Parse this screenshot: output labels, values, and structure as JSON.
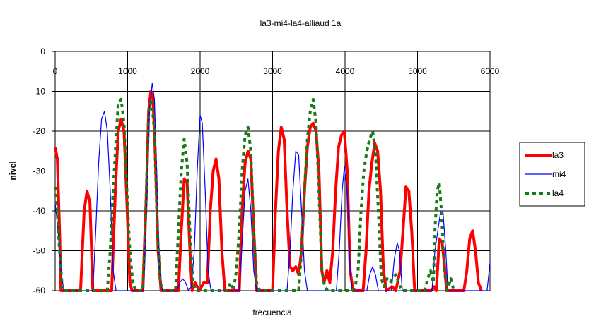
{
  "chart_data": {
    "type": "line",
    "title": "la3-mi4-la4-alliaud 1a",
    "xlabel": "frecuencia",
    "ylabel": "nivel",
    "xlim": [
      0,
      6000
    ],
    "ylim": [
      -60,
      0
    ],
    "xticks": [
      0,
      1000,
      2000,
      3000,
      4000,
      5000,
      6000
    ],
    "yticks": [
      0,
      -10,
      -20,
      -30,
      -40,
      -50,
      -60
    ],
    "grid": true,
    "legend_position": "right",
    "series": [
      {
        "name": "la3",
        "color": "#ff0000",
        "style": "solid-thick",
        "points": [
          [
            0,
            -24
          ],
          [
            30,
            -27
          ],
          [
            60,
            -45
          ],
          [
            80,
            -60
          ],
          [
            350,
            -60
          ],
          [
            400,
            -40
          ],
          [
            440,
            -35
          ],
          [
            480,
            -38
          ],
          [
            520,
            -60
          ],
          [
            780,
            -60
          ],
          [
            830,
            -35
          ],
          [
            870,
            -20
          ],
          [
            910,
            -17
          ],
          [
            950,
            -20
          ],
          [
            990,
            -38
          ],
          [
            1030,
            -58
          ],
          [
            1060,
            -60
          ],
          [
            1210,
            -60
          ],
          [
            1260,
            -35
          ],
          [
            1290,
            -15
          ],
          [
            1320,
            -10
          ],
          [
            1350,
            -12
          ],
          [
            1380,
            -25
          ],
          [
            1420,
            -50
          ],
          [
            1460,
            -60
          ],
          [
            1700,
            -60
          ],
          [
            1740,
            -45
          ],
          [
            1780,
            -32
          ],
          [
            1820,
            -33
          ],
          [
            1860,
            -50
          ],
          [
            1890,
            -60
          ],
          [
            1930,
            -58
          ],
          [
            1990,
            -60
          ],
          [
            2050,
            -58
          ],
          [
            2100,
            -58
          ],
          [
            2140,
            -40
          ],
          [
            2180,
            -30
          ],
          [
            2220,
            -27
          ],
          [
            2260,
            -32
          ],
          [
            2300,
            -50
          ],
          [
            2340,
            -60
          ],
          [
            2540,
            -60
          ],
          [
            2580,
            -40
          ],
          [
            2620,
            -28
          ],
          [
            2660,
            -25
          ],
          [
            2700,
            -27
          ],
          [
            2740,
            -45
          ],
          [
            2780,
            -60
          ],
          [
            3000,
            -60
          ],
          [
            3040,
            -40
          ],
          [
            3080,
            -25
          ],
          [
            3120,
            -19
          ],
          [
            3160,
            -22
          ],
          [
            3200,
            -40
          ],
          [
            3240,
            -54
          ],
          [
            3280,
            -55
          ],
          [
            3320,
            -54
          ],
          [
            3360,
            -56
          ],
          [
            3400,
            -50
          ],
          [
            3440,
            -35
          ],
          [
            3480,
            -24
          ],
          [
            3520,
            -19
          ],
          [
            3560,
            -18
          ],
          [
            3600,
            -20
          ],
          [
            3640,
            -30
          ],
          [
            3680,
            -55
          ],
          [
            3710,
            -58
          ],
          [
            3750,
            -55
          ],
          [
            3790,
            -58
          ],
          [
            3830,
            -50
          ],
          [
            3870,
            -35
          ],
          [
            3910,
            -24
          ],
          [
            3950,
            -21
          ],
          [
            3990,
            -20
          ],
          [
            4030,
            -30
          ],
          [
            4070,
            -55
          ],
          [
            4110,
            -60
          ],
          [
            4250,
            -60
          ],
          [
            4290,
            -50
          ],
          [
            4330,
            -35
          ],
          [
            4370,
            -28
          ],
          [
            4410,
            -23
          ],
          [
            4450,
            -25
          ],
          [
            4490,
            -35
          ],
          [
            4530,
            -55
          ],
          [
            4570,
            -60
          ],
          [
            4650,
            -59
          ],
          [
            4700,
            -60
          ],
          [
            4760,
            -55
          ],
          [
            4800,
            -45
          ],
          [
            4840,
            -34
          ],
          [
            4880,
            -35
          ],
          [
            4920,
            -45
          ],
          [
            4960,
            -60
          ],
          [
            5190,
            -60
          ],
          [
            5230,
            -59
          ],
          [
            5260,
            -60
          ],
          [
            5300,
            -47
          ],
          [
            5340,
            -48
          ],
          [
            5380,
            -55
          ],
          [
            5400,
            -60
          ],
          [
            5560,
            -60
          ],
          [
            5640,
            -60
          ],
          [
            5680,
            -55
          ],
          [
            5720,
            -47
          ],
          [
            5760,
            -45
          ],
          [
            5800,
            -50
          ],
          [
            5840,
            -58
          ],
          [
            5880,
            -60
          ]
        ]
      },
      {
        "name": "mi4",
        "color": "#0000ff",
        "style": "solid-thin",
        "points": [
          [
            0,
            -38
          ],
          [
            40,
            -45
          ],
          [
            80,
            -55
          ],
          [
            120,
            -60
          ],
          [
            520,
            -60
          ],
          [
            560,
            -45
          ],
          [
            600,
            -28
          ],
          [
            640,
            -17
          ],
          [
            680,
            -15
          ],
          [
            720,
            -20
          ],
          [
            760,
            -35
          ],
          [
            800,
            -55
          ],
          [
            840,
            -60
          ],
          [
            1220,
            -60
          ],
          [
            1260,
            -40
          ],
          [
            1300,
            -15
          ],
          [
            1340,
            -8
          ],
          [
            1370,
            -12
          ],
          [
            1400,
            -30
          ],
          [
            1440,
            -55
          ],
          [
            1480,
            -60
          ],
          [
            1680,
            -60
          ],
          [
            1720,
            -58
          ],
          [
            1760,
            -57
          ],
          [
            1800,
            -58
          ],
          [
            1840,
            -60
          ],
          [
            1880,
            -59
          ],
          [
            1920,
            -50
          ],
          [
            1960,
            -30
          ],
          [
            2000,
            -16
          ],
          [
            2030,
            -18
          ],
          [
            2070,
            -35
          ],
          [
            2110,
            -55
          ],
          [
            2150,
            -60
          ],
          [
            2540,
            -60
          ],
          [
            2580,
            -48
          ],
          [
            2620,
            -35
          ],
          [
            2660,
            -32
          ],
          [
            2700,
            -40
          ],
          [
            2740,
            -55
          ],
          [
            2780,
            -60
          ],
          [
            3200,
            -60
          ],
          [
            3240,
            -50
          ],
          [
            3280,
            -35
          ],
          [
            3320,
            -25
          ],
          [
            3360,
            -26
          ],
          [
            3400,
            -40
          ],
          [
            3440,
            -55
          ],
          [
            3480,
            -60
          ],
          [
            3880,
            -60
          ],
          [
            3920,
            -50
          ],
          [
            3960,
            -35
          ],
          [
            3990,
            -29
          ],
          [
            4030,
            -35
          ],
          [
            4070,
            -55
          ],
          [
            4100,
            -60
          ],
          [
            4300,
            -60
          ],
          [
            4340,
            -56
          ],
          [
            4380,
            -54
          ],
          [
            4420,
            -56
          ],
          [
            4460,
            -60
          ],
          [
            4640,
            -60
          ],
          [
            4680,
            -52
          ],
          [
            4720,
            -48
          ],
          [
            4750,
            -50
          ],
          [
            4790,
            -60
          ],
          [
            5200,
            -60
          ],
          [
            5240,
            -50
          ],
          [
            5280,
            -45
          ],
          [
            5320,
            -40
          ],
          [
            5350,
            -40
          ],
          [
            5390,
            -50
          ],
          [
            5420,
            -60
          ],
          [
            5960,
            -60
          ],
          [
            6000,
            -53
          ]
        ]
      },
      {
        "name": "la4",
        "color": "#1a7a1a",
        "style": "dashed-thick",
        "points": [
          [
            0,
            -34
          ],
          [
            30,
            -40
          ],
          [
            60,
            -50
          ],
          [
            100,
            -60
          ],
          [
            720,
            -60
          ],
          [
            760,
            -50
          ],
          [
            800,
            -35
          ],
          [
            840,
            -22
          ],
          [
            870,
            -13
          ],
          [
            910,
            -12
          ],
          [
            950,
            -18
          ],
          [
            990,
            -35
          ],
          [
            1030,
            -50
          ],
          [
            1070,
            -58
          ],
          [
            1110,
            -60
          ],
          [
            1210,
            -60
          ],
          [
            1250,
            -40
          ],
          [
            1290,
            -15
          ],
          [
            1330,
            -12
          ],
          [
            1370,
            -20
          ],
          [
            1410,
            -45
          ],
          [
            1450,
            -58
          ],
          [
            1490,
            -60
          ],
          [
            1660,
            -60
          ],
          [
            1700,
            -45
          ],
          [
            1740,
            -30
          ],
          [
            1780,
            -22
          ],
          [
            1820,
            -28
          ],
          [
            1860,
            -45
          ],
          [
            1900,
            -58
          ],
          [
            1940,
            -60
          ],
          [
            2380,
            -60
          ],
          [
            2420,
            -58
          ],
          [
            2460,
            -60
          ],
          [
            2500,
            -55
          ],
          [
            2540,
            -45
          ],
          [
            2580,
            -30
          ],
          [
            2620,
            -21
          ],
          [
            2660,
            -19
          ],
          [
            2700,
            -25
          ],
          [
            2740,
            -45
          ],
          [
            2780,
            -58
          ],
          [
            2820,
            -60
          ],
          [
            3360,
            -60
          ],
          [
            3400,
            -50
          ],
          [
            3440,
            -35
          ],
          [
            3480,
            -22
          ],
          [
            3520,
            -15
          ],
          [
            3560,
            -12
          ],
          [
            3600,
            -18
          ],
          [
            3640,
            -35
          ],
          [
            3680,
            -55
          ],
          [
            3720,
            -59
          ],
          [
            3760,
            -60
          ],
          [
            4100,
            -60
          ],
          [
            4140,
            -59
          ],
          [
            4180,
            -55
          ],
          [
            4220,
            -40
          ],
          [
            4260,
            -30
          ],
          [
            4300,
            -25
          ],
          [
            4340,
            -22
          ],
          [
            4380,
            -20
          ],
          [
            4420,
            -25
          ],
          [
            4460,
            -40
          ],
          [
            4500,
            -57
          ],
          [
            4540,
            -59
          ],
          [
            4580,
            -57
          ],
          [
            4620,
            -58
          ],
          [
            4660,
            -57
          ],
          [
            4700,
            -56
          ],
          [
            4740,
            -58
          ],
          [
            4780,
            -60
          ],
          [
            5100,
            -60
          ],
          [
            5140,
            -57
          ],
          [
            5180,
            -55
          ],
          [
            5220,
            -58
          ],
          [
            5240,
            -45
          ],
          [
            5270,
            -35
          ],
          [
            5300,
            -33
          ],
          [
            5330,
            -40
          ],
          [
            5370,
            -55
          ],
          [
            5410,
            -60
          ],
          [
            5460,
            -57
          ],
          [
            5500,
            -60
          ]
        ]
      }
    ]
  }
}
